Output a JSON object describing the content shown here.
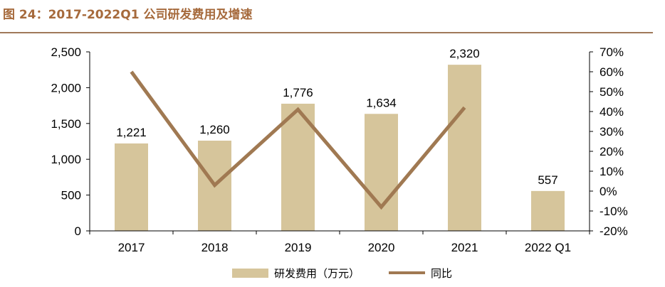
{
  "caption": "图 24：2017-2022Q1 公司研发费用及增速",
  "colors": {
    "bar": "#d6c59b",
    "line": "#a07952",
    "caption": "#a66a3c",
    "axis": "#000000"
  },
  "chart_data": {
    "type": "bar",
    "categories": [
      "2017",
      "2018",
      "2019",
      "2020",
      "2021",
      "2022 Q1"
    ],
    "series": [
      {
        "name": "研发费用（万元）",
        "type": "bar",
        "axis": "left",
        "values": [
          1221,
          1260,
          1776,
          1634,
          2320,
          557
        ],
        "labels": [
          "1,221",
          "1,260",
          "1,776",
          "1,634",
          "2,320",
          "557"
        ]
      },
      {
        "name": "同比",
        "type": "line",
        "axis": "right",
        "values": [
          60,
          3,
          41,
          -8,
          42,
          null
        ]
      }
    ],
    "y_left": {
      "lim": [
        0,
        2500
      ],
      "ticks": [
        0,
        500,
        1000,
        1500,
        2000,
        2500
      ],
      "tick_labels": [
        "0",
        "500",
        "1,000",
        "1,500",
        "2,000",
        "2,500"
      ]
    },
    "y_right": {
      "lim": [
        -20,
        70
      ],
      "ticks": [
        -20,
        -10,
        0,
        10,
        20,
        30,
        40,
        50,
        60,
        70
      ],
      "tick_labels": [
        "-20%",
        "-10%",
        "0%",
        "10%",
        "20%",
        "30%",
        "40%",
        "50%",
        "60%",
        "70%"
      ]
    },
    "legend_position": "bottom",
    "grid": false
  }
}
